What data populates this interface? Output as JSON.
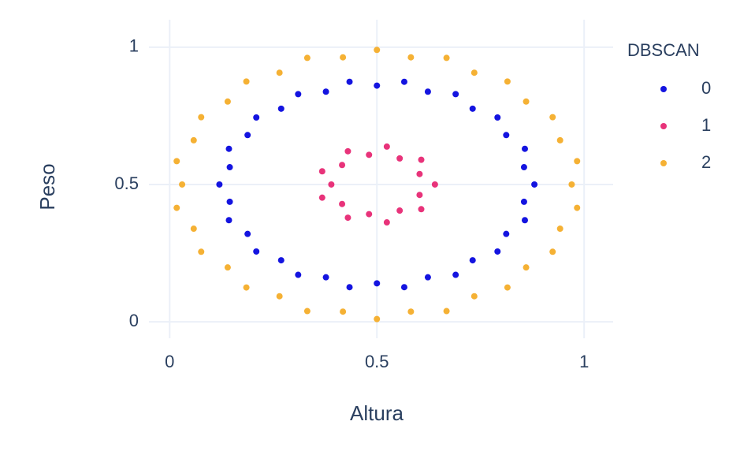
{
  "chart_data": {
    "type": "scatter",
    "xlabel": "Altura",
    "ylabel": "Peso",
    "legend_title": "DBSCAN",
    "legend": "right",
    "grid": true,
    "xlim": [
      -0.05,
      1.07
    ],
    "ylim": [
      -0.06,
      1.1
    ],
    "xticks": [
      0,
      0.5,
      1
    ],
    "yticks": [
      0,
      0.5,
      1
    ],
    "series": [
      {
        "name": "0",
        "color": "#1414e0",
        "x": [
          0.88,
          0.855,
          0.857,
          0.812,
          0.791,
          0.731,
          0.69,
          0.623,
          0.566,
          0.5,
          0.434,
          0.377,
          0.31,
          0.269,
          0.209,
          0.188,
          0.143,
          0.145,
          0.12,
          0.145,
          0.143,
          0.188,
          0.209,
          0.269,
          0.31,
          0.377,
          0.434,
          0.5,
          0.566,
          0.623,
          0.69,
          0.731,
          0.791,
          0.812,
          0.857,
          0.855
        ],
        "y": [
          0.5,
          0.563,
          0.63,
          0.68,
          0.744,
          0.776,
          0.829,
          0.838,
          0.874,
          0.86,
          0.874,
          0.838,
          0.829,
          0.776,
          0.744,
          0.68,
          0.63,
          0.563,
          0.5,
          0.437,
          0.37,
          0.32,
          0.256,
          0.224,
          0.171,
          0.162,
          0.126,
          0.14,
          0.126,
          0.162,
          0.171,
          0.224,
          0.256,
          0.32,
          0.37,
          0.437
        ]
      },
      {
        "name": "1",
        "color": "#e8337a",
        "x": [
          0.64,
          0.603,
          0.607,
          0.555,
          0.524,
          0.481,
          0.43,
          0.416,
          0.368,
          0.39,
          0.368,
          0.416,
          0.43,
          0.481,
          0.524,
          0.555,
          0.607,
          0.603
        ],
        "y": [
          0.5,
          0.538,
          0.59,
          0.595,
          0.638,
          0.608,
          0.621,
          0.571,
          0.548,
          0.5,
          0.452,
          0.429,
          0.379,
          0.392,
          0.362,
          0.405,
          0.41,
          0.462
        ]
      },
      {
        "name": "2",
        "color": "#f5b134",
        "x": [
          0.97,
          0.983,
          0.942,
          0.924,
          0.86,
          0.815,
          0.735,
          0.668,
          0.582,
          0.5,
          0.418,
          0.332,
          0.265,
          0.185,
          0.14,
          0.076,
          0.058,
          0.017,
          0.03,
          0.017,
          0.058,
          0.076,
          0.14,
          0.185,
          0.265,
          0.332,
          0.418,
          0.5,
          0.582,
          0.668,
          0.735,
          0.815,
          0.86,
          0.924,
          0.942,
          0.983
        ],
        "y": [
          0.5,
          0.585,
          0.661,
          0.745,
          0.802,
          0.875,
          0.907,
          0.961,
          0.963,
          0.99,
          0.963,
          0.961,
          0.907,
          0.875,
          0.802,
          0.745,
          0.661,
          0.585,
          0.5,
          0.415,
          0.339,
          0.255,
          0.198,
          0.125,
          0.093,
          0.039,
          0.037,
          0.01,
          0.037,
          0.039,
          0.093,
          0.125,
          0.198,
          0.255,
          0.339,
          0.415
        ]
      }
    ]
  }
}
